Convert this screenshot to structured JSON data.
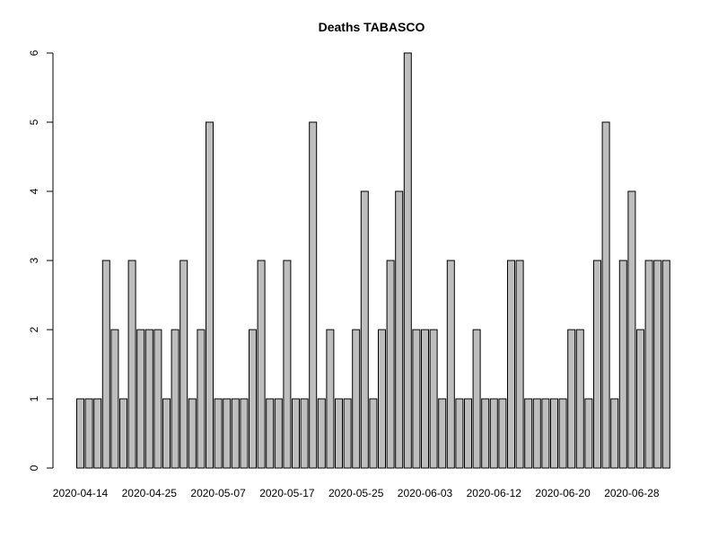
{
  "chart_data": {
    "type": "bar",
    "title": "Deaths TABASCO",
    "xlabel": "",
    "ylabel": "",
    "ylim": [
      0,
      6
    ],
    "yticks": [
      0,
      1,
      2,
      3,
      4,
      5,
      6
    ],
    "x_tick_labels": [
      {
        "index": 0,
        "label": "2020-04-14"
      },
      {
        "index": 8,
        "label": "2020-04-25"
      },
      {
        "index": 16,
        "label": "2020-05-07"
      },
      {
        "index": 24,
        "label": "2020-05-17"
      },
      {
        "index": 32,
        "label": "2020-05-25"
      },
      {
        "index": 40,
        "label": "2020-06-03"
      },
      {
        "index": 48,
        "label": "2020-06-12"
      },
      {
        "index": 56,
        "label": "2020-06-20"
      },
      {
        "index": 64,
        "label": "2020-06-28"
      }
    ],
    "values": [
      1,
      1,
      1,
      3,
      2,
      1,
      3,
      2,
      2,
      2,
      1,
      2,
      3,
      1,
      2,
      5,
      1,
      1,
      1,
      1,
      2,
      3,
      1,
      1,
      3,
      1,
      1,
      5,
      1,
      2,
      1,
      1,
      2,
      4,
      1,
      2,
      3,
      4,
      6,
      2,
      2,
      2,
      1,
      3,
      1,
      1,
      2,
      1,
      1,
      1,
      3,
      3,
      1,
      1,
      1,
      1,
      1,
      2,
      2,
      1,
      3,
      5,
      1,
      3,
      4,
      2,
      3,
      3,
      3
    ],
    "grid": false,
    "legend": "none"
  }
}
